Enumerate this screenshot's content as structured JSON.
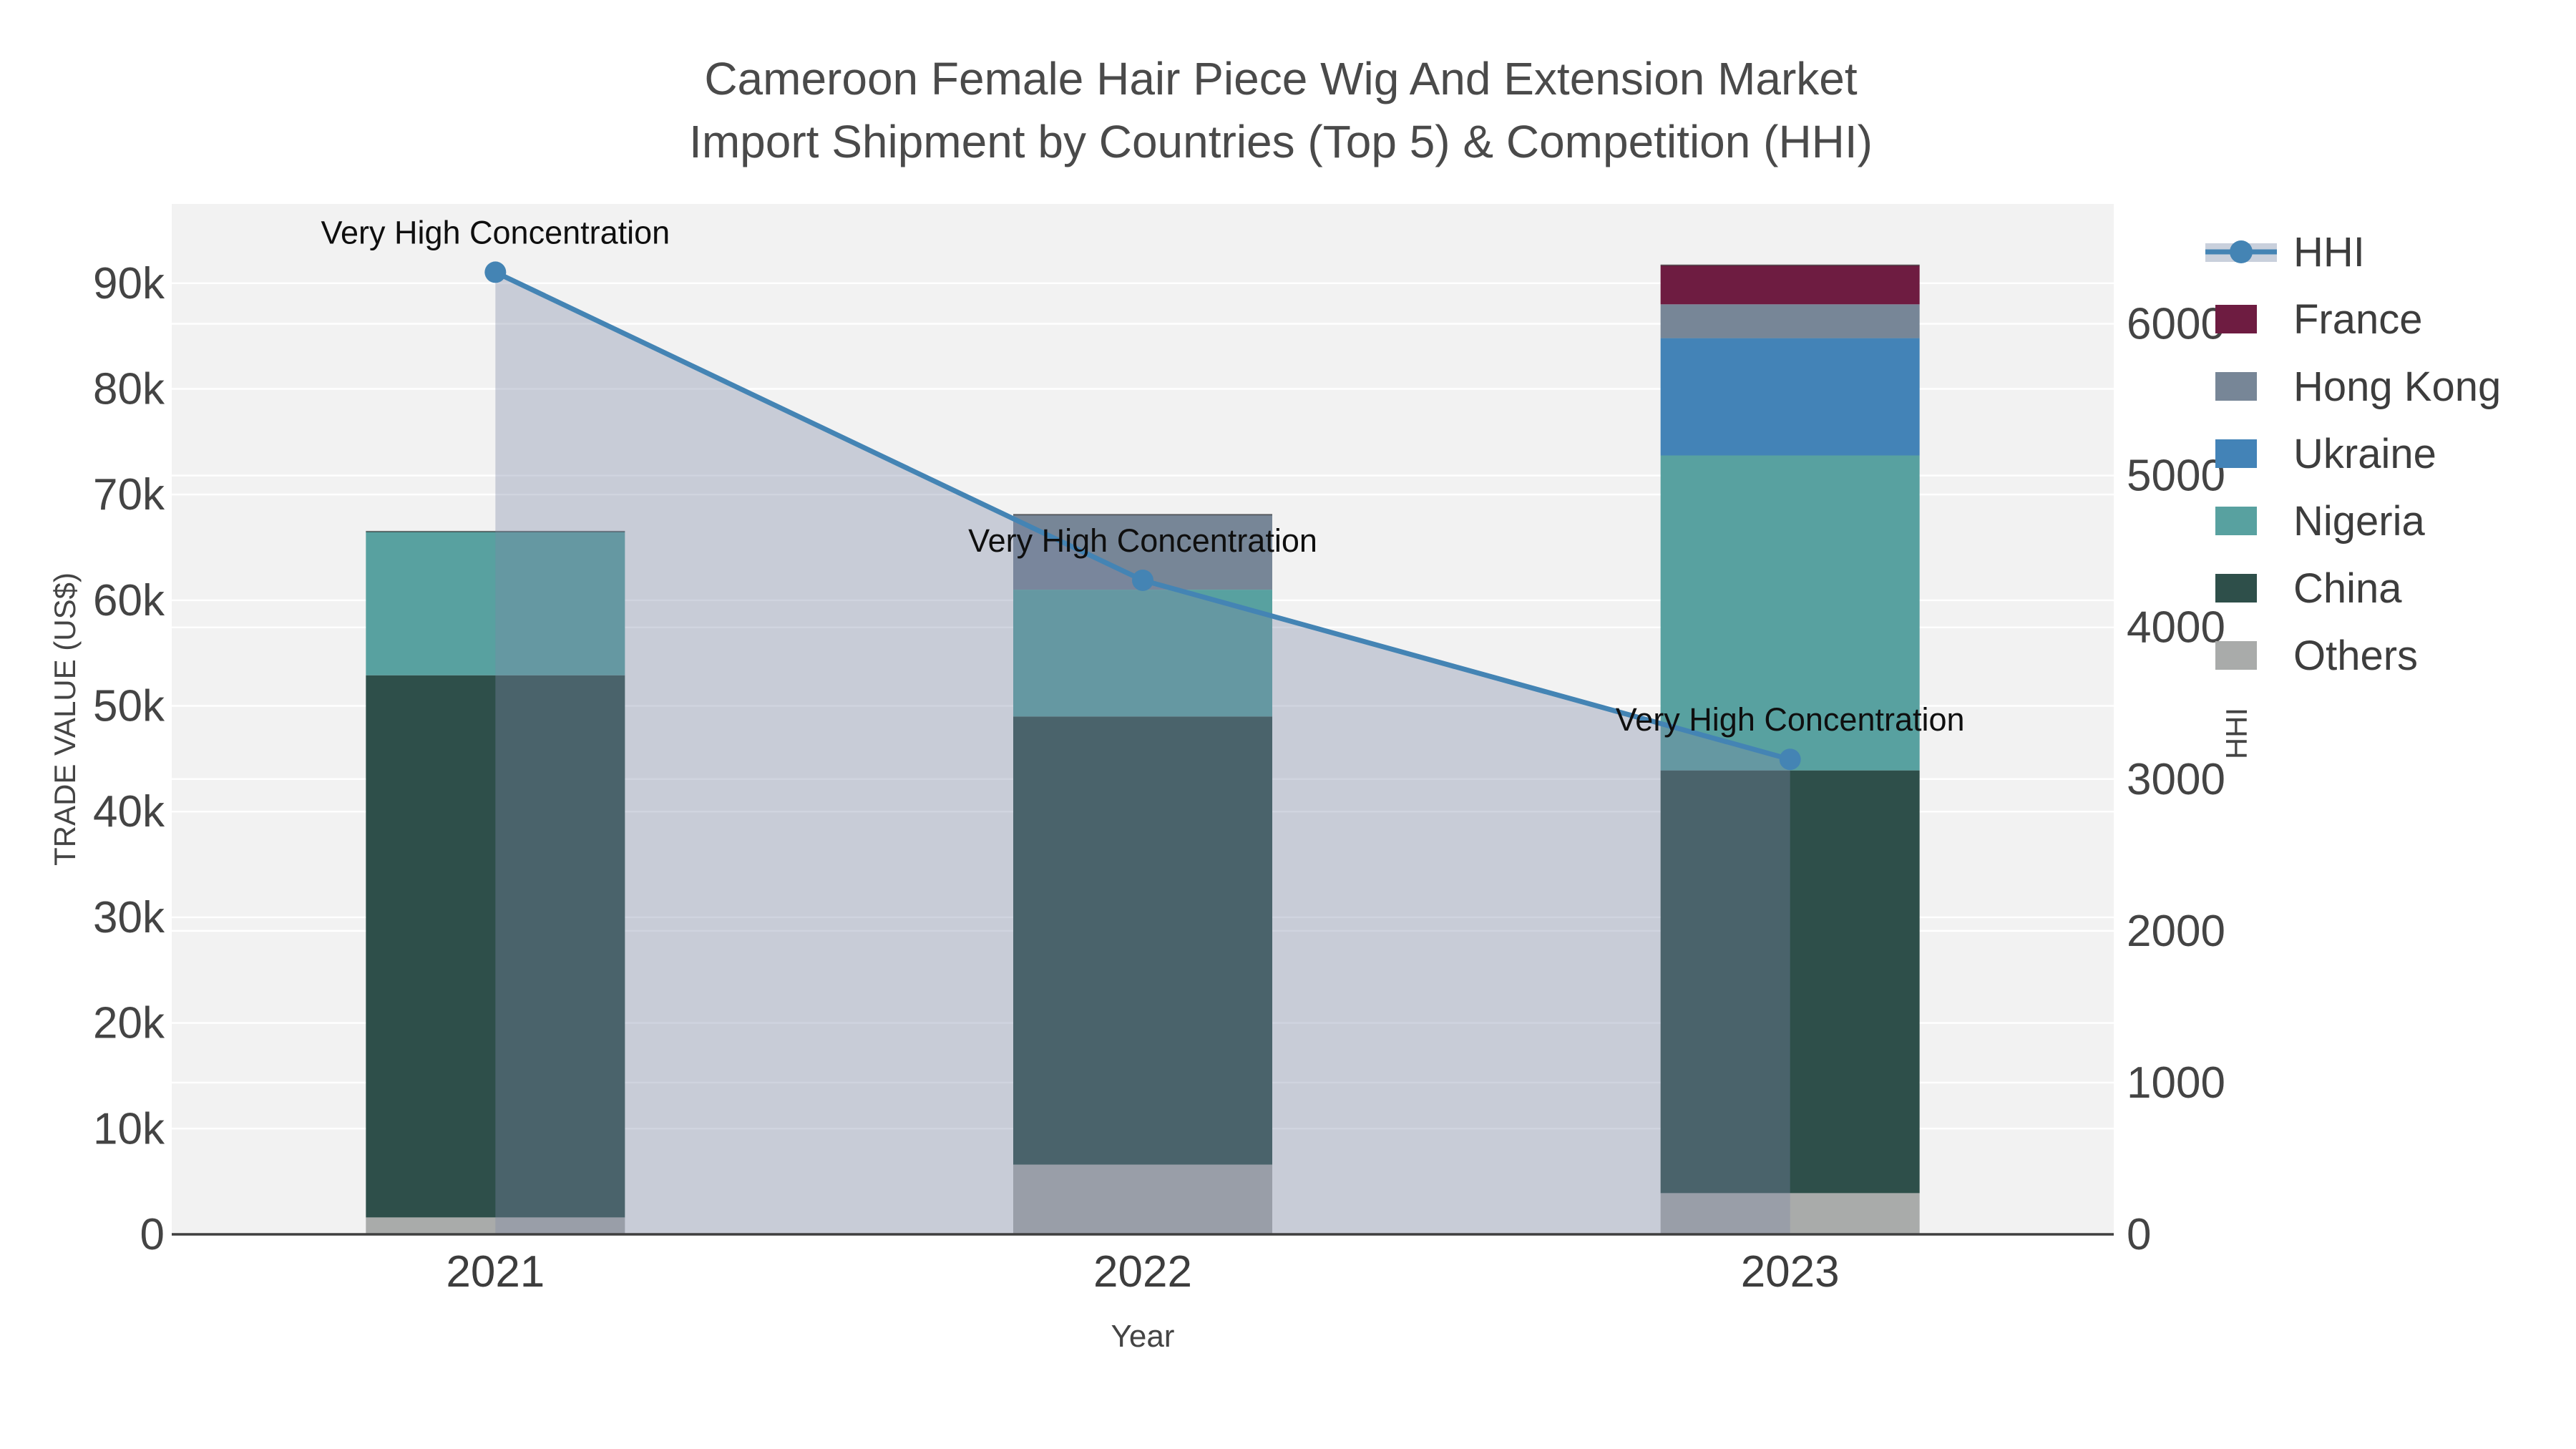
{
  "title": {
    "line1": "Cameroon Female Hair Piece Wig And Extension Market",
    "line2": "Import Shipment by Countries (Top 5) & Competition (HHI)"
  },
  "chart_data": {
    "type": "bar",
    "subtype": "stacked-bar-with-line",
    "categories": [
      "2021",
      "2022",
      "2023"
    ],
    "series": [
      {
        "name": "Others",
        "color": "#a9abaa",
        "values": [
          1600,
          6600,
          3900
        ]
      },
      {
        "name": "China",
        "color": "#2e4f4a",
        "values": [
          51300,
          42400,
          40000
        ]
      },
      {
        "name": "Nigeria",
        "color": "#58a1a0",
        "values": [
          13600,
          12000,
          29800
        ]
      },
      {
        "name": "Ukraine",
        "color": "#4383b7",
        "values": [
          0,
          0,
          11100
        ]
      },
      {
        "name": "Hong Kong",
        "color": "#778697",
        "values": [
          0,
          7100,
          3200
        ]
      },
      {
        "name": "France",
        "color": "#6e1c41",
        "values": [
          0,
          0,
          3700
        ]
      }
    ],
    "hhi": {
      "name": "HHI",
      "values": [
        6340,
        4310,
        3130
      ],
      "color": "#4484b4",
      "area_color": "rgba(124,136,167,0.36)",
      "legend_band_color": "#c9d0dc"
    },
    "annotations": [
      {
        "x": "2021",
        "text": "Very High Concentration"
      },
      {
        "x": "2022",
        "text": "Very High Concentration"
      },
      {
        "x": "2023",
        "text": "Very High Concentration"
      }
    ],
    "xlabel": "Year",
    "ylabel": "TRADE VALUE (US$)",
    "y2label": "HHI",
    "ylim": [
      0,
      97500
    ],
    "y2lim": [
      0,
      6790
    ],
    "yticks": [
      {
        "v": 0,
        "label": "0"
      },
      {
        "v": 10000,
        "label": "10k"
      },
      {
        "v": 20000,
        "label": "20k"
      },
      {
        "v": 30000,
        "label": "30k"
      },
      {
        "v": 40000,
        "label": "40k"
      },
      {
        "v": 50000,
        "label": "50k"
      },
      {
        "v": 60000,
        "label": "60k"
      },
      {
        "v": 70000,
        "label": "70k"
      },
      {
        "v": 80000,
        "label": "80k"
      },
      {
        "v": 90000,
        "label": "90k"
      }
    ],
    "y2ticks": [
      {
        "v": 0,
        "label": "0"
      },
      {
        "v": 1000,
        "label": "1000"
      },
      {
        "v": 2000,
        "label": "2000"
      },
      {
        "v": 3000,
        "label": "3000"
      },
      {
        "v": 4000,
        "label": "4000"
      },
      {
        "v": 5000,
        "label": "5000"
      },
      {
        "v": 6000,
        "label": "6000"
      }
    ],
    "legend": [
      "HHI",
      "France",
      "Hong Kong",
      "Ukraine",
      "Nigeria",
      "China",
      "Others"
    ],
    "legend_position": "right",
    "grid": true,
    "plot_bg": "#f2f2f2",
    "grid_color": "rgba(255,255,255,0.95)",
    "axis_line_color": "#3f3f3f",
    "tick_color": "#444444",
    "annotation_color": "#0f0f0f"
  }
}
